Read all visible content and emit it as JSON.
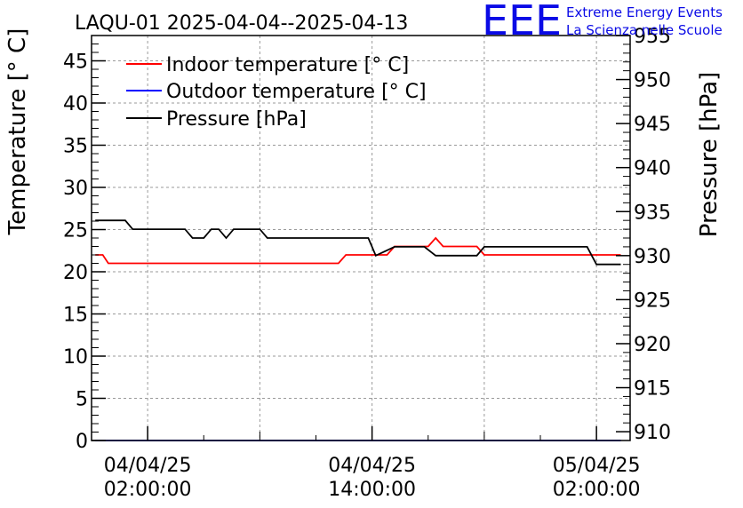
{
  "logo": {
    "mark": "EEE",
    "line1": "Extreme Energy Events",
    "line2": "La Scienza nelle Scuole",
    "color": "#0a0ae6"
  },
  "chart_data": {
    "type": "line",
    "title": "LAQU-01 2025-04-04--2025-04-13",
    "ylabel": "Temperature [° C]",
    "y2label": "Pressure [hPa]",
    "xlabel": "",
    "ylim": [
      0,
      48
    ],
    "y2lim": [
      909,
      955
    ],
    "xlim_hours": [
      -3.0,
      25.8
    ],
    "yticks": [
      0,
      5,
      10,
      15,
      20,
      25,
      30,
      35,
      40,
      45
    ],
    "y2ticks": [
      910,
      915,
      920,
      925,
      930,
      935,
      940,
      945,
      950,
      955
    ],
    "xticks": [
      {
        "t": 0,
        "date": "04/04/25",
        "time": "02:00:00"
      },
      {
        "t": 12,
        "date": "04/04/25",
        "time": "14:00:00"
      },
      {
        "t": 24,
        "date": "05/04/25",
        "time": "02:00:00"
      }
    ],
    "grid": true,
    "legend_position": "top-left",
    "series": [
      {
        "name": "Indoor temperature [° C]",
        "axis": "left",
        "color": "#ff0000",
        "points": [
          [
            -2.8,
            22
          ],
          [
            -2.4,
            22
          ],
          [
            -2.1,
            21
          ],
          [
            10.2,
            21
          ],
          [
            10.6,
            22
          ],
          [
            12.8,
            22
          ],
          [
            13.2,
            23
          ],
          [
            15.0,
            23
          ],
          [
            15.4,
            24
          ],
          [
            15.8,
            23
          ],
          [
            17.6,
            23
          ],
          [
            18.0,
            22
          ],
          [
            25.3,
            22
          ]
        ]
      },
      {
        "name": "Outdoor temperature [° C]",
        "axis": "left",
        "color": "#0000ff",
        "points": [
          [
            -2.8,
            0
          ],
          [
            25.3,
            0
          ]
        ]
      },
      {
        "name": "Pressure [hPa]",
        "axis": "right",
        "color": "#000000",
        "points": [
          [
            -2.8,
            934
          ],
          [
            -1.2,
            934
          ],
          [
            -0.8,
            933
          ],
          [
            2.0,
            933
          ],
          [
            2.4,
            932
          ],
          [
            3.0,
            932
          ],
          [
            3.4,
            933
          ],
          [
            3.8,
            933
          ],
          [
            4.2,
            932
          ],
          [
            4.6,
            933
          ],
          [
            6.0,
            933
          ],
          [
            6.4,
            932
          ],
          [
            11.8,
            932
          ],
          [
            12.2,
            930
          ],
          [
            13.2,
            931
          ],
          [
            14.8,
            931
          ],
          [
            15.4,
            930
          ],
          [
            17.6,
            930
          ],
          [
            18.0,
            931
          ],
          [
            23.5,
            931
          ],
          [
            24.0,
            929
          ],
          [
            25.3,
            929
          ]
        ]
      }
    ]
  }
}
